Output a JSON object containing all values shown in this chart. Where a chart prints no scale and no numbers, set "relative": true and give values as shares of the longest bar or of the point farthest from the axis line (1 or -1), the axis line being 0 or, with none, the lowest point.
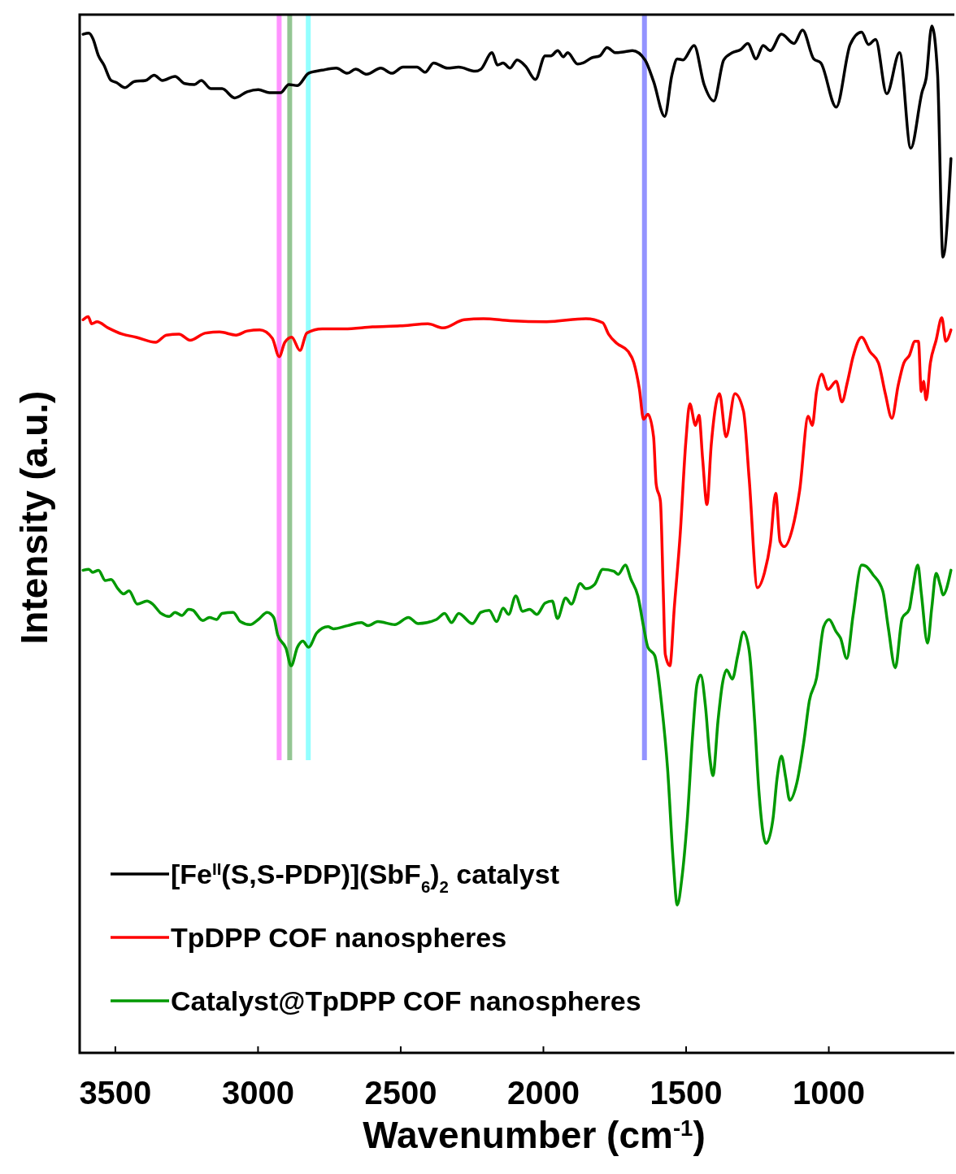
{
  "chart_data": {
    "type": "line",
    "xlabel": "Wavenumber (cm$^{-1}$)",
    "ylabel": "Intensity (a.u.)",
    "relative": true,
    "xlim": [
      3625,
      560
    ],
    "xticks": [
      3500,
      3000,
      2500,
      2000,
      1500,
      1000
    ],
    "legend": "bottom left",
    "ref_lines": [
      {
        "axis": "x",
        "value": 2926,
        "color": "#ff88ff"
      },
      {
        "axis": "x",
        "value": 2889,
        "color": "#88c088"
      },
      {
        "axis": "x",
        "value": 2824,
        "color": "#88ffff"
      },
      {
        "axis": "x",
        "value": 1646,
        "color": "#8888ff"
      }
    ],
    "series": [
      {
        "name": "[Fe$^{II}$(S,S-PDP)](SbF$_{6}$)$_{2}$ catalyst",
        "color": "#000000",
        "x": [
          3613,
          3593,
          3579,
          3559,
          3540,
          3515,
          3496,
          3467,
          3433,
          3394,
          3364,
          3335,
          3291,
          3257,
          3223,
          3199,
          3165,
          3126,
          3082,
          3038,
          2999,
          2960,
          2921,
          2892,
          2862,
          2823,
          2775,
          2726,
          2687,
          2658,
          2619,
          2570,
          2531,
          2492,
          2443,
          2414,
          2385,
          2336,
          2297,
          2239,
          2219,
          2180,
          2161,
          2141,
          2117,
          2092,
          2063,
          2028,
          1994,
          1974,
          1950,
          1930,
          1915,
          1880,
          1861,
          1831,
          1802,
          1777,
          1747,
          1713,
          1688,
          1644,
          1614,
          1575,
          1550,
          1531,
          1511,
          1472,
          1437,
          1403,
          1368,
          1338,
          1309,
          1284,
          1255,
          1230,
          1205,
          1166,
          1122,
          1092,
          1053,
          1028,
          974,
          925,
          885,
          861,
          836,
          797,
          752,
          713,
          673,
          659,
          639,
          619,
          600,
          572
        ],
        "values": [
          0.992,
          0.993,
          0.988,
          0.971,
          0.962,
          0.947,
          0.945,
          0.94,
          0.946,
          0.947,
          0.952,
          0.947,
          0.951,
          0.944,
          0.943,
          0.947,
          0.939,
          0.939,
          0.93,
          0.936,
          0.938,
          0.935,
          0.935,
          0.943,
          0.942,
          0.954,
          0.957,
          0.959,
          0.954,
          0.958,
          0.953,
          0.959,
          0.954,
          0.96,
          0.96,
          0.955,
          0.964,
          0.959,
          0.96,
          0.956,
          0.958,
          0.974,
          0.962,
          0.964,
          0.959,
          0.967,
          0.961,
          0.948,
          0.971,
          0.971,
          0.976,
          0.97,
          0.974,
          0.963,
          0.964,
          0.969,
          0.971,
          0.979,
          0.974,
          0.975,
          0.976,
          0.967,
          0.946,
          0.912,
          0.952,
          0.968,
          0.967,
          0.981,
          0.943,
          0.927,
          0.967,
          0.974,
          0.977,
          0.983,
          0.968,
          0.981,
          0.976,
          0.992,
          0.983,
          0.996,
          0.968,
          0.964,
          0.921,
          0.982,
          0.994,
          0.982,
          0.987,
          0.934,
          0.974,
          0.881,
          0.936,
          0.949,
          1.0,
          0.954,
          0.775,
          0.871
        ]
      },
      {
        "name": "TpDPP COF nanospheres",
        "color": "#ff0000",
        "x": [
          3613,
          3595,
          3583,
          3564,
          3525,
          3476,
          3428,
          3359,
          3321,
          3277,
          3238,
          3184,
          3135,
          3077,
          3038,
          2994,
          2950,
          2926,
          2906,
          2882,
          2853,
          2829,
          2775,
          2697,
          2599,
          2502,
          2405,
          2351,
          2278,
          2210,
          2117,
          1989,
          1851,
          1792,
          1772,
          1743,
          1703,
          1683,
          1664,
          1649,
          1634,
          1614,
          1605,
          1590,
          1580,
          1573,
          1557,
          1541,
          1521,
          1501,
          1487,
          1467,
          1455,
          1442,
          1427,
          1412,
          1383,
          1360,
          1329,
          1299,
          1279,
          1250,
          1225,
          1205,
          1186,
          1171,
          1156,
          1127,
          1102,
          1072,
          1058,
          1043,
          1025,
          1003,
          974,
          954,
          935,
          915,
          885,
          856,
          826,
          802,
          779,
          757,
          737,
          718,
          698,
          686,
          676,
          668,
          659,
          644,
          624,
          604,
          590,
          572
        ],
        "values": [
          0.714,
          0.717,
          0.71,
          0.712,
          0.706,
          0.7,
          0.697,
          0.692,
          0.699,
          0.7,
          0.694,
          0.701,
          0.702,
          0.699,
          0.703,
          0.704,
          0.696,
          0.678,
          0.692,
          0.697,
          0.684,
          0.701,
          0.705,
          0.705,
          0.707,
          0.708,
          0.71,
          0.706,
          0.714,
          0.715,
          0.713,
          0.712,
          0.715,
          0.711,
          0.7,
          0.691,
          0.683,
          0.672,
          0.647,
          0.617,
          0.622,
          0.6,
          0.554,
          0.537,
          0.449,
          0.388,
          0.377,
          0.435,
          0.504,
          0.595,
          0.632,
          0.611,
          0.621,
          0.578,
          0.534,
          0.592,
          0.642,
          0.6,
          0.642,
          0.625,
          0.559,
          0.453,
          0.468,
          0.496,
          0.545,
          0.498,
          0.493,
          0.511,
          0.548,
          0.62,
          0.611,
          0.644,
          0.661,
          0.646,
          0.654,
          0.634,
          0.653,
          0.678,
          0.697,
          0.683,
          0.672,
          0.642,
          0.618,
          0.65,
          0.672,
          0.679,
          0.693,
          0.693,
          0.644,
          0.654,
          0.636,
          0.672,
          0.694,
          0.716,
          0.693,
          0.704
        ]
      },
      {
        "name": "Catalyst@TpDPP COF nanospheres",
        "color": "#009900",
        "x": [
          3613,
          3593,
          3579,
          3559,
          3535,
          3515,
          3491,
          3471,
          3452,
          3423,
          3389,
          3369,
          3340,
          3311,
          3291,
          3267,
          3243,
          3228,
          3194,
          3170,
          3145,
          3126,
          3087,
          3062,
          3028,
          2999,
          2968,
          2945,
          2931,
          2902,
          2884,
          2862,
          2843,
          2823,
          2794,
          2755,
          2736,
          2687,
          2638,
          2614,
          2580,
          2521,
          2473,
          2439,
          2375,
          2346,
          2322,
          2297,
          2249,
          2219,
          2190,
          2164,
          2141,
          2122,
          2097,
          2073,
          2048,
          2023,
          1994,
          1969,
          1951,
          1922,
          1902,
          1871,
          1851,
          1821,
          1792,
          1753,
          1738,
          1713,
          1693,
          1669,
          1649,
          1634,
          1610,
          1585,
          1565,
          1545,
          1531,
          1514,
          1496,
          1477,
          1462,
          1449,
          1432,
          1417,
          1406,
          1388,
          1373,
          1358,
          1338,
          1319,
          1299,
          1279,
          1260,
          1245,
          1220,
          1196,
          1181,
          1166,
          1151,
          1137,
          1112,
          1087,
          1068,
          1043,
          1018,
          999,
          974,
          959,
          937,
          915,
          885,
          870,
          846,
          811,
          792,
          767,
          743,
          718,
          708,
          688,
          676,
          654,
          639,
          624,
          609,
          600,
          572
        ],
        "values": [
          0.47,
          0.471,
          0.468,
          0.47,
          0.46,
          0.461,
          0.452,
          0.447,
          0.45,
          0.437,
          0.44,
          0.437,
          0.428,
          0.425,
          0.429,
          0.426,
          0.432,
          0.431,
          0.421,
          0.424,
          0.422,
          0.428,
          0.429,
          0.42,
          0.417,
          0.422,
          0.429,
          0.424,
          0.407,
          0.394,
          0.377,
          0.395,
          0.401,
          0.395,
          0.409,
          0.415,
          0.413,
          0.416,
          0.419,
          0.416,
          0.42,
          0.417,
          0.424,
          0.418,
          0.422,
          0.428,
          0.419,
          0.428,
          0.418,
          0.429,
          0.431,
          0.42,
          0.433,
          0.427,
          0.445,
          0.43,
          0.432,
          0.427,
          0.438,
          0.44,
          0.423,
          0.443,
          0.437,
          0.457,
          0.452,
          0.456,
          0.471,
          0.469,
          0.466,
          0.475,
          0.461,
          0.445,
          0.415,
          0.395,
          0.387,
          0.337,
          0.277,
          0.186,
          0.144,
          0.172,
          0.227,
          0.31,
          0.359,
          0.368,
          0.337,
          0.288,
          0.27,
          0.324,
          0.359,
          0.373,
          0.364,
          0.387,
          0.41,
          0.392,
          0.324,
          0.255,
          0.204,
          0.227,
          0.268,
          0.289,
          0.268,
          0.246,
          0.263,
          0.304,
          0.343,
          0.365,
          0.415,
          0.422,
          0.41,
          0.404,
          0.384,
          0.426,
          0.475,
          0.474,
          0.466,
          0.45,
          0.415,
          0.375,
          0.423,
          0.432,
          0.448,
          0.475,
          0.448,
          0.399,
          0.434,
          0.467,
          0.455,
          0.446,
          0.47
        ]
      }
    ]
  }
}
